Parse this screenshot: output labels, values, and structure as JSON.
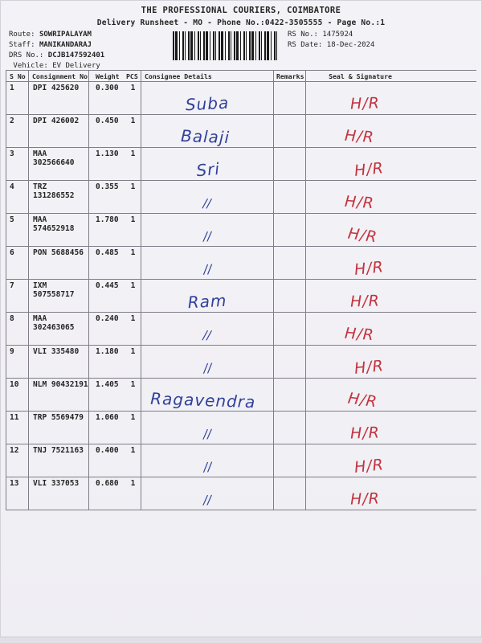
{
  "header": {
    "title": "THE PROFESSIONAL COURIERS, COIMBATORE",
    "subtitle": "Delivery Runsheet - MO - Phone No.:0422-3505555 - Page No.:1",
    "route_label": "Route: ",
    "route": "SOWRIPALAYAM",
    "staff_label": "Staff: ",
    "staff": "MANIKANDARAJ",
    "drs_label": "DRS No.: ",
    "drs_no": "DCJB147592401",
    "vehicle_label": " Vehicle: ",
    "vehicle": "EV Delivery",
    "rs_no_label": "RS No.: ",
    "rs_no": "1475924",
    "rs_date_label": "RS Date: ",
    "rs_date": "18-Dec-2024",
    "barcode_icon": "barcode"
  },
  "table": {
    "columns": [
      "S No",
      "Consignment No",
      "Weight",
      "PCS",
      "Consignee Details",
      "Remarks",
      "Seal & Signature"
    ],
    "rows": [
      {
        "sno": "1",
        "consignment": "DPI 425620",
        "weight": "0.300",
        "pcs": "1",
        "consignee_handwriting": "Suba",
        "remarks": "",
        "signature_handwriting": "H/R"
      },
      {
        "sno": "2",
        "consignment": "DPI 426002",
        "weight": "0.450",
        "pcs": "1",
        "consignee_handwriting": "Balaji",
        "remarks": "",
        "signature_handwriting": "H/R"
      },
      {
        "sno": "3",
        "consignment": "MAA 302566640",
        "weight": "1.130",
        "pcs": "1",
        "consignee_handwriting": "Sri",
        "remarks": "",
        "signature_handwriting": "H/R"
      },
      {
        "sno": "4",
        "consignment": "TRZ 131286552",
        "weight": "0.355",
        "pcs": "1",
        "consignee_handwriting": "//",
        "remarks": "",
        "signature_handwriting": "H/R"
      },
      {
        "sno": "5",
        "consignment": "MAA 574652918",
        "weight": "1.780",
        "pcs": "1",
        "consignee_handwriting": "//",
        "remarks": "",
        "signature_handwriting": "H/R"
      },
      {
        "sno": "6",
        "consignment": "PON 5688456",
        "weight": "0.485",
        "pcs": "1",
        "consignee_handwriting": "//",
        "remarks": "",
        "signature_handwriting": "H/R"
      },
      {
        "sno": "7",
        "consignment": "IXM 507558717",
        "weight": "0.445",
        "pcs": "1",
        "consignee_handwriting": "Ram",
        "remarks": "",
        "signature_handwriting": "H/R"
      },
      {
        "sno": "8",
        "consignment": "MAA 302463065",
        "weight": "0.240",
        "pcs": "1",
        "consignee_handwriting": "//",
        "remarks": "",
        "signature_handwriting": "H/R"
      },
      {
        "sno": "9",
        "consignment": "VLI 335480",
        "weight": "1.180",
        "pcs": "1",
        "consignee_handwriting": "//",
        "remarks": "",
        "signature_handwriting": "H/R"
      },
      {
        "sno": "10",
        "consignment": "NLM 90432191",
        "weight": "1.405",
        "pcs": "1",
        "consignee_handwriting": "Ragavendra",
        "remarks": "",
        "signature_handwriting": "H/R"
      },
      {
        "sno": "11",
        "consignment": "TRP 5569479",
        "weight": "1.060",
        "pcs": "1",
        "consignee_handwriting": "//",
        "remarks": "",
        "signature_handwriting": "H/R"
      },
      {
        "sno": "12",
        "consignment": "TNJ 7521163",
        "weight": "0.400",
        "pcs": "1",
        "consignee_handwriting": "//",
        "remarks": "",
        "signature_handwriting": "H/R"
      },
      {
        "sno": "13",
        "consignment": "VLI 337053",
        "weight": "0.680",
        "pcs": "1",
        "consignee_handwriting": "//",
        "remarks": "",
        "signature_handwriting": "H/R"
      }
    ]
  },
  "ink_colors": {
    "handwriting_blue": "#31409a",
    "signature_red": "#c2333e"
  }
}
